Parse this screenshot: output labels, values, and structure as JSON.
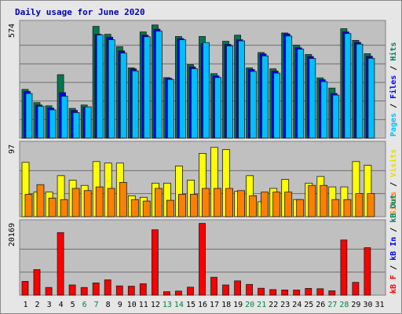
{
  "chart_data": {
    "type": "bar",
    "title": "Daily usage for June 2020",
    "title_color": "#0000b0",
    "grid": true,
    "days": [
      "1",
      "2",
      "3",
      "4",
      "5",
      "6",
      "7",
      "8",
      "9",
      "10",
      "11",
      "12",
      "13",
      "14",
      "15",
      "16",
      "17",
      "18",
      "19",
      "20",
      "21",
      "22",
      "23",
      "24",
      "25",
      "26",
      "27",
      "28",
      "29",
      "30",
      "31"
    ],
    "weekend_days": [
      6,
      7,
      13,
      14,
      20,
      21,
      27,
      28
    ],
    "day_color_weekday": "#000000",
    "day_color_weekend": "#008040",
    "background_color": "#c0c0c0",
    "panels": [
      {
        "id": "hits-files-pages",
        "ymax": 574,
        "ymax_label": "574",
        "side_labels": [
          {
            "text": "Pages",
            "color": "#00c0ff"
          },
          {
            "text": " / ",
            "color": "#000000"
          },
          {
            "text": "Files",
            "color": "#0000ff"
          },
          {
            "text": " / ",
            "color": "#000000"
          },
          {
            "text": "Hits",
            "color": "#008060"
          }
        ],
        "series": [
          {
            "key": "hits",
            "color": "#007850",
            "values": [
              244,
              178,
              162,
              318,
              149,
              166,
              560,
              520,
              458,
              352,
              532,
              567,
              303,
              509,
              368,
              509,
              323,
              485,
              516,
              352,
              429,
              347,
              527,
              466,
              419,
              302,
              251,
              548,
              490,
              423,
              0
            ]
          },
          {
            "key": "files",
            "color": "#0000ff",
            "values": [
              234,
              166,
              151,
              228,
              139,
              155,
              520,
              506,
              437,
              347,
              516,
              546,
              300,
              499,
              357,
              474,
              312,
              470,
              493,
              344,
              422,
              336,
              522,
              453,
              409,
              293,
              224,
              532,
              480,
              410,
              0
            ]
          },
          {
            "key": "pages",
            "color": "#00bfff",
            "values": [
              224,
              160,
              142,
              210,
              128,
              157,
              517,
              493,
              426,
              337,
              508,
              536,
              294,
              493,
              348,
              479,
              304,
              462,
              487,
              334,
              412,
              326,
              512,
              446,
              399,
              283,
              216,
              524,
              471,
              400,
              0
            ]
          }
        ]
      },
      {
        "id": "visits-sites",
        "ymax": 97,
        "ymax_label": "97",
        "side_labels": [
          {
            "text": "Sites",
            "color": "#ff8000"
          },
          {
            "text": " / ",
            "color": "#000000"
          },
          {
            "text": "Visits",
            "color": "#e0e000"
          }
        ],
        "series": [
          {
            "key": "visits",
            "color": "#ffff00",
            "values": [
              73,
              33,
              33,
              55,
              49,
              42,
              74,
              72,
              72,
              28,
              26,
              45,
              45,
              68,
              49,
              85,
              93,
              90,
              34,
              55,
              20,
              38,
              50,
              23,
              45,
              54,
              40,
              40,
              74,
              69,
              0
            ]
          },
          {
            "key": "sites",
            "color": "#ff8000",
            "values": [
              30,
              43,
              25,
              23,
              38,
              35,
              40,
              38,
              46,
              23,
              21,
              38,
              22,
              30,
              30,
              38,
              38,
              38,
              35,
              28,
              33,
              33,
              33,
              23,
              42,
              42,
              23,
              23,
              31,
              31,
              0
            ]
          }
        ]
      },
      {
        "id": "kbytes",
        "ymax": 20169,
        "ymax_label": "20169",
        "side_labels": [
          {
            "text": "kB F",
            "color": "#ff0000"
          },
          {
            "text": " / ",
            "color": "#000000"
          },
          {
            "text": "kB In",
            "color": "#0000ff"
          },
          {
            "text": " / ",
            "color": "#000000"
          },
          {
            "text": "kB Out",
            "color": "#008060"
          }
        ],
        "series": [
          {
            "key": "kbytes",
            "color": "#ff0000",
            "values": [
              3860,
              7140,
              2150,
              17480,
              2850,
              2140,
              3420,
              4280,
              2580,
              2500,
              3170,
              18260,
              970,
              1140,
              2230,
              20040,
              5000,
              2850,
              4000,
              3000,
              1930,
              1560,
              1440,
              1430,
              1880,
              1790,
              1200,
              15420,
              3580,
              13270,
              0
            ]
          }
        ]
      }
    ]
  }
}
